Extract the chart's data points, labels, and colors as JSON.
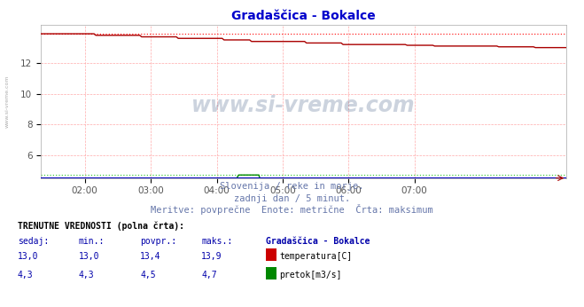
{
  "title": "Gradaščica - Bokalce",
  "title_color": "#0000cc",
  "bg_color": "#ffffff",
  "plot_bg_color": "#ffffff",
  "grid_color": "#ffaaaa",
  "x_tick_labels": [
    "02:00",
    "03:00",
    "04:00",
    "05:00",
    "06:00",
    "07:00"
  ],
  "x_tick_positions": [
    24,
    60,
    96,
    132,
    168,
    204
  ],
  "ylim_min": 4.5,
  "ylim_max": 14.5,
  "yticks": [
    6,
    8,
    10,
    12
  ],
  "temp_color": "#aa0000",
  "temp_max_color": "#ff2222",
  "flow_color": "#008800",
  "flow_max_color": "#44cc44",
  "height_color": "#0000bb",
  "subtitle_lines": [
    "Slovenija / reke in morje.",
    "zadnji dan / 5 minut.",
    "Meritve: povprečne  Enote: metrične  Črta: maksimum"
  ],
  "subtitle_color": "#6677aa",
  "table_header": "TRENUTNE VREDNOSTI (polna črta):",
  "col_headers": [
    "sedaj:",
    "min.:",
    "povpr.:",
    "maks.:",
    "Gradaščica - Bokalce"
  ],
  "table_header_color": "#000000",
  "col_header_color": "#0000aa",
  "row1_vals": [
    "13,0",
    "13,0",
    "13,4",
    "13,9"
  ],
  "row2_vals": [
    "4,3",
    "4,3",
    "4,5",
    "4,7"
  ],
  "val_color": "#0000aa",
  "legend_labels": [
    "temperatura[C]",
    "pretok[m3/s]"
  ],
  "legend_colors": [
    "#cc0000",
    "#008800"
  ],
  "N": 288,
  "step_points": [
    30,
    55,
    75,
    100,
    115,
    145,
    165,
    200,
    215,
    250,
    270
  ],
  "step_vals": [
    13.8,
    13.7,
    13.6,
    13.5,
    13.4,
    13.3,
    13.2,
    13.15,
    13.1,
    13.05,
    13.0
  ],
  "temp_init": 13.9,
  "temp_max_val": 13.9,
  "flow_base": 4.3,
  "flow_jump_start": 96,
  "flow_jump_mid": 108,
  "flow_jump_end": 120,
  "flow_mid_val": 4.5,
  "flow_jump_val": 4.7,
  "flow_max_val": 4.7,
  "height_val": 4.52,
  "watermark_text": "www.si-vreme.com",
  "side_label": "www.si-vreme.com"
}
